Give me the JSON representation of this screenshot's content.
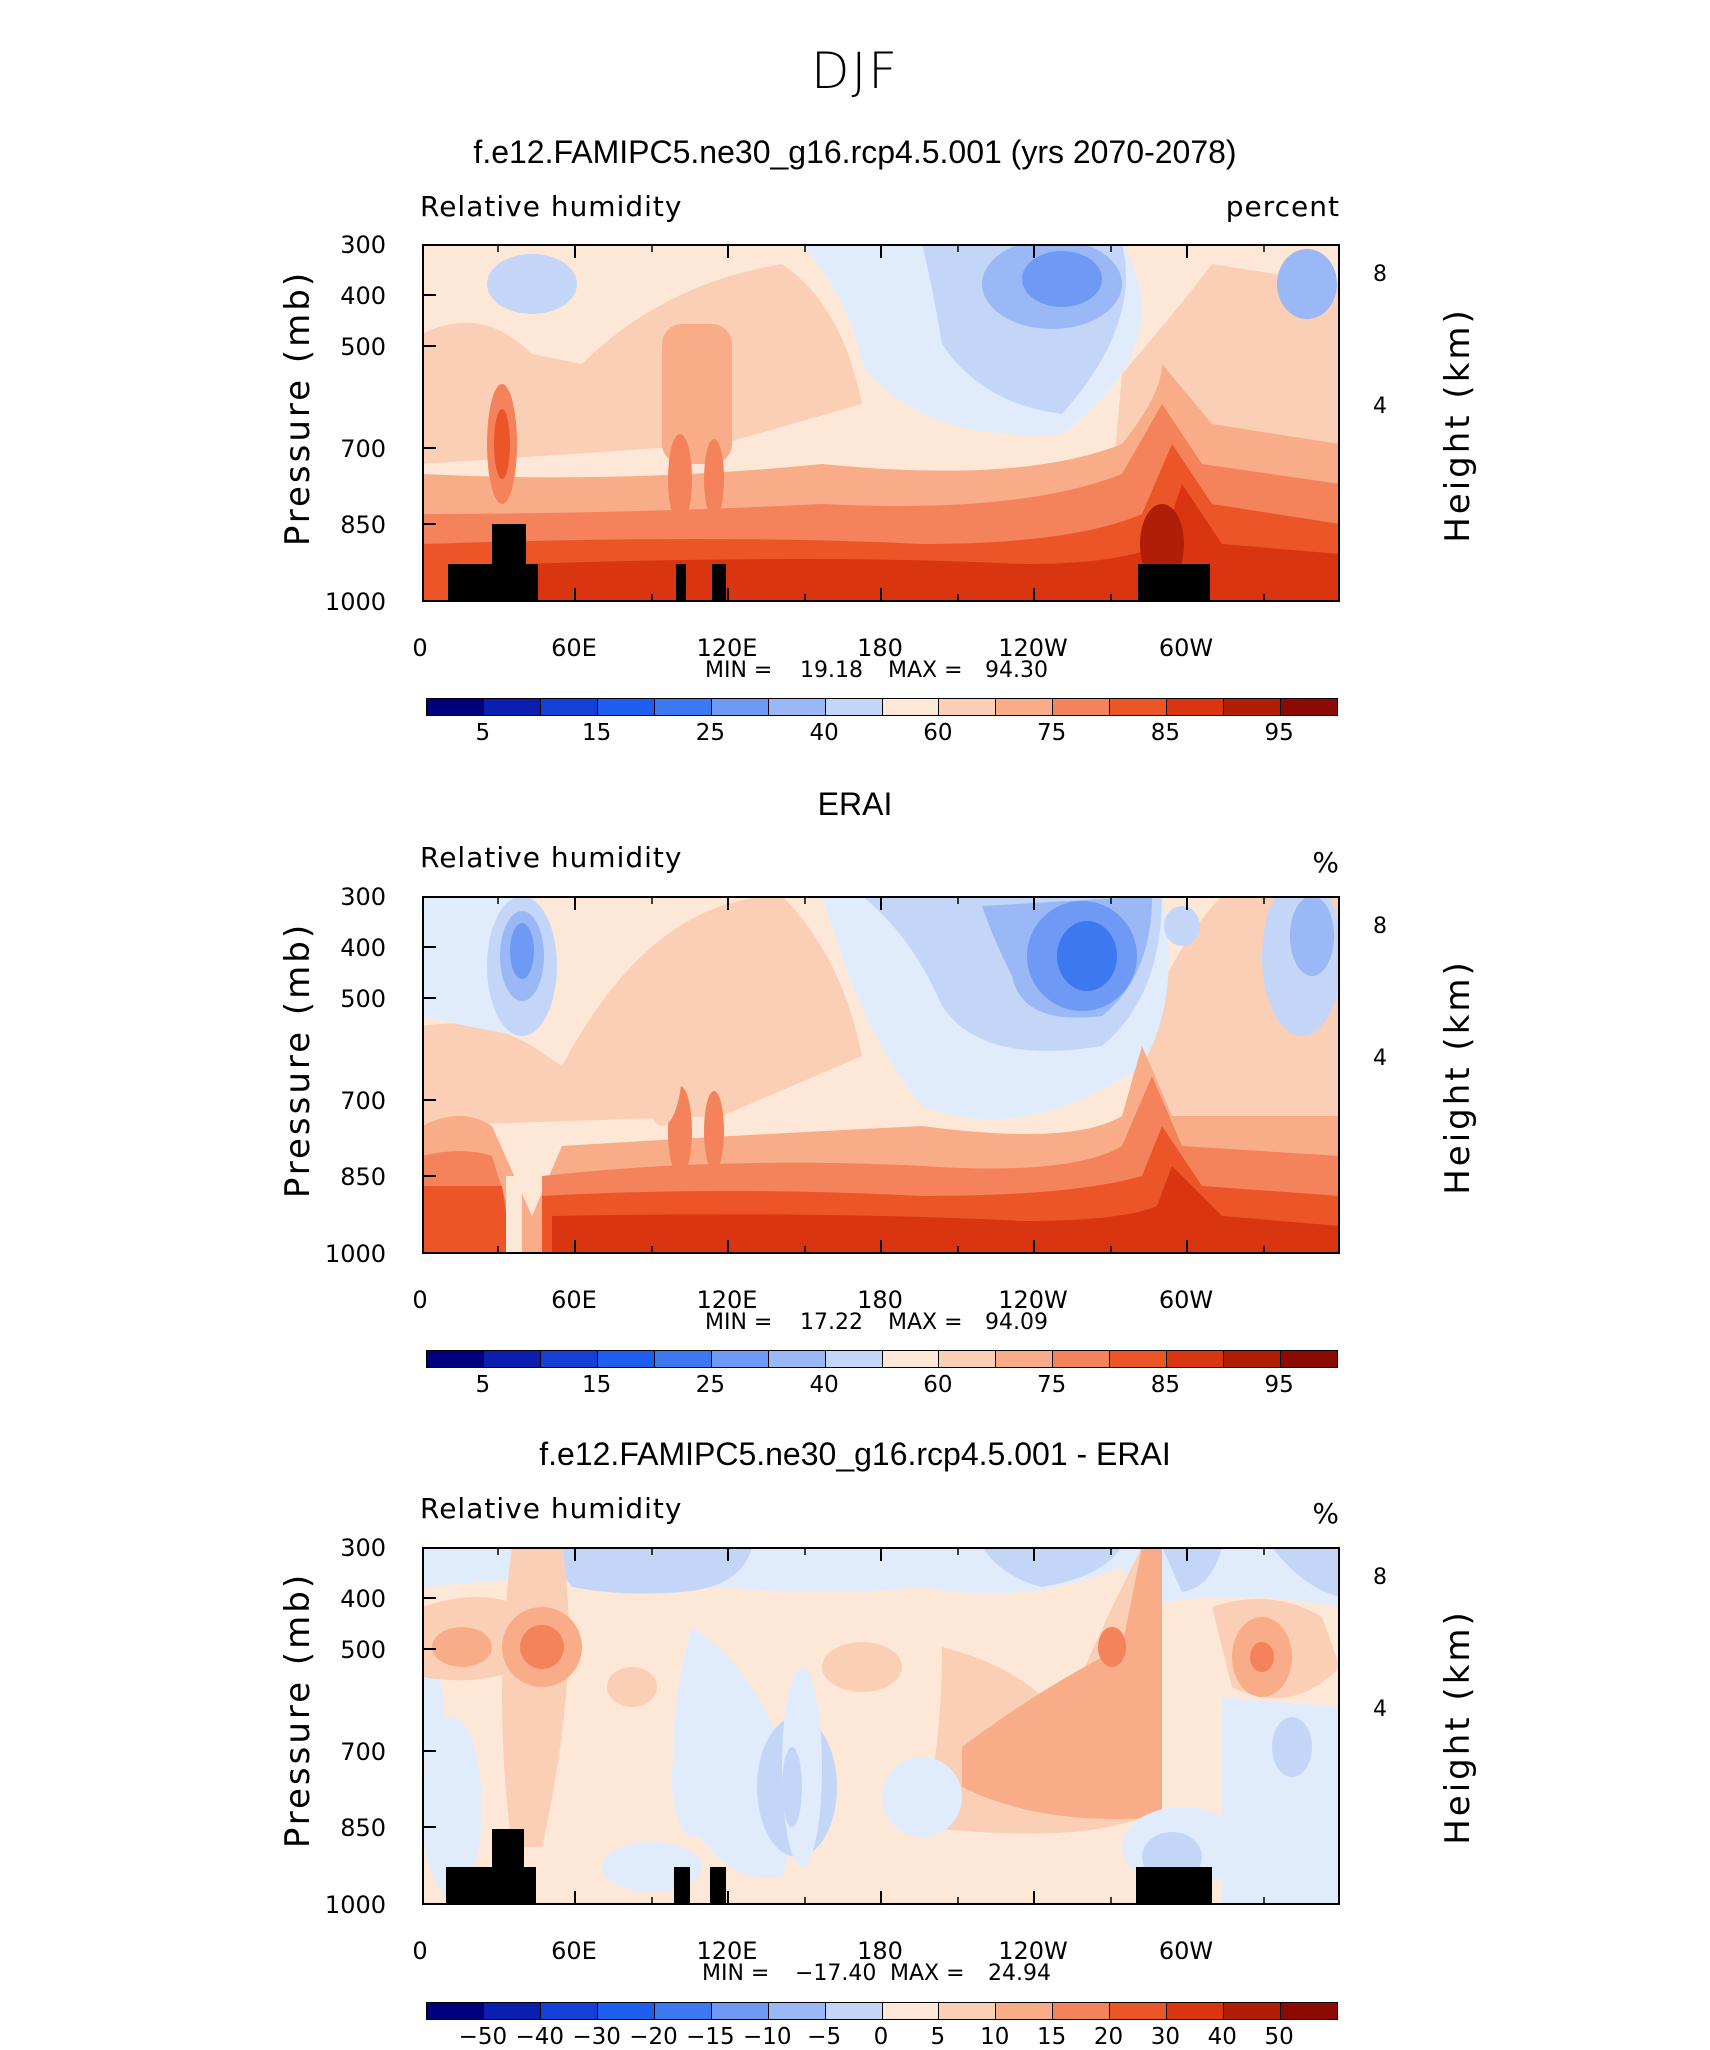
{
  "figure_title": "DJF",
  "panels": [
    {
      "title": "f.e12.FAMIPC5.ne30_g16.rcp4.5.001 (yrs 2070-2078)",
      "variable": "Relative humidity",
      "units": "percent",
      "ylabel_left": "Pressure (mb)",
      "ylabel_right": "Height (km)",
      "y_ticks": [
        "300",
        "400",
        "500",
        "700",
        "850",
        "1000"
      ],
      "right_ticks": [
        "8",
        "4"
      ],
      "x_ticks": [
        "0",
        "60E",
        "120E",
        "180",
        "120W",
        "60W"
      ],
      "min_label": "MIN =",
      "min_value": "19.18",
      "max_label": "MAX =",
      "max_value": "94.30",
      "colorbar_labels": [
        "5",
        "15",
        "25",
        "40",
        "60",
        "75",
        "85",
        "95"
      ]
    },
    {
      "title": "ERAI",
      "variable": "Relative humidity",
      "units": "%",
      "ylabel_left": "Pressure (mb)",
      "ylabel_right": "Height (km)",
      "y_ticks": [
        "300",
        "400",
        "500",
        "700",
        "850",
        "1000"
      ],
      "right_ticks": [
        "8",
        "4"
      ],
      "x_ticks": [
        "0",
        "60E",
        "120E",
        "180",
        "120W",
        "60W"
      ],
      "min_label": "MIN =",
      "min_value": "17.22",
      "max_label": "MAX =",
      "max_value": "94.09",
      "colorbar_labels": [
        "5",
        "15",
        "25",
        "40",
        "60",
        "75",
        "85",
        "95"
      ]
    },
    {
      "title": "f.e12.FAMIPC5.ne30_g16.rcp4.5.001 - ERAI",
      "variable": "Relative humidity",
      "units": "%",
      "ylabel_left": "Pressure (mb)",
      "ylabel_right": "Height (km)",
      "y_ticks": [
        "300",
        "400",
        "500",
        "700",
        "850",
        "1000"
      ],
      "right_ticks": [
        "8",
        "4"
      ],
      "x_ticks": [
        "0",
        "60E",
        "120E",
        "180",
        "120W",
        "60W"
      ],
      "min_label": "MIN =",
      "min_value": "−17.40",
      "max_label": "MAX =",
      "max_value": "24.94",
      "colorbar_labels": [
        "−50",
        "−40",
        "−30",
        "−20",
        "−15",
        "−10",
        "−5",
        "0",
        "5",
        "10",
        "15",
        "20",
        "30",
        "40",
        "50"
      ]
    }
  ],
  "colormap": [
    "#00007f",
    "#0a1fb0",
    "#1440d8",
    "#1f5cf0",
    "#3c78f0",
    "#6e9af5",
    "#9ab8f5",
    "#c4d6f8",
    "#e0ecfb",
    "#fde8d8",
    "#fbcfb5",
    "#f8ac88",
    "#f4825a",
    "#ec5528",
    "#d83510",
    "#b01e08",
    "#8c0a04"
  ],
  "chart_data": [
    {
      "type": "heatmap",
      "title": "f.e12.FAMIPC5.ne30_g16.rcp4.5.001 (yrs 2070-2078)",
      "xlabel": "",
      "ylabel": "Pressure (mb)",
      "x": [
        "0",
        "60E",
        "120E",
        "180",
        "120W",
        "60W"
      ],
      "y": [
        300,
        400,
        500,
        700,
        850,
        1000
      ],
      "ylim": [
        1000,
        300
      ],
      "levels": [
        5,
        10,
        15,
        20,
        25,
        30,
        40,
        50,
        60,
        70,
        75,
        80,
        85,
        90,
        95
      ],
      "min": 19.18,
      "max": 94.3
    },
    {
      "type": "heatmap",
      "title": "ERAI",
      "xlabel": "",
      "ylabel": "Pressure (mb)",
      "x": [
        "0",
        "60E",
        "120E",
        "180",
        "120W",
        "60W"
      ],
      "y": [
        300,
        400,
        500,
        700,
        850,
        1000
      ],
      "ylim": [
        1000,
        300
      ],
      "levels": [
        5,
        10,
        15,
        20,
        25,
        30,
        40,
        50,
        60,
        70,
        75,
        80,
        85,
        90,
        95
      ],
      "min": 17.22,
      "max": 94.09
    },
    {
      "type": "heatmap",
      "title": "f.e12.FAMIPC5.ne30_g16.rcp4.5.001 - ERAI",
      "xlabel": "",
      "ylabel": "Pressure (mb)",
      "x": [
        "0",
        "60E",
        "120E",
        "180",
        "120W",
        "60W"
      ],
      "y": [
        300,
        400,
        500,
        700,
        850,
        1000
      ],
      "ylim": [
        1000,
        300
      ],
      "levels": [
        -50,
        -40,
        -30,
        -20,
        -15,
        -10,
        -5,
        0,
        5,
        10,
        15,
        20,
        30,
        40,
        50
      ],
      "min": -17.4,
      "max": 24.94
    }
  ]
}
